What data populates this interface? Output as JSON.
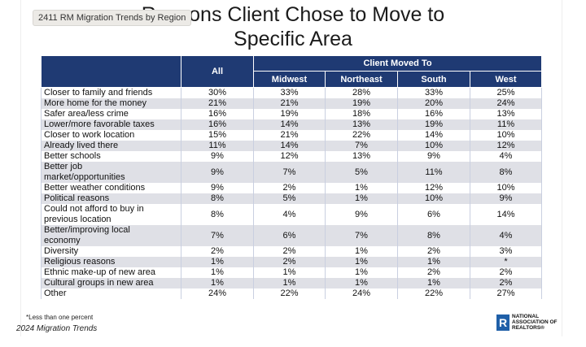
{
  "tooltip": "2411 RM Migration Trends by Region",
  "title": [
    "Reasons Client Chose to Move to",
    "Specific Area"
  ],
  "table": {
    "header": {
      "all": "All",
      "group": "Client Moved To",
      "columns": [
        "Midwest",
        "Northeast",
        "South",
        "West"
      ]
    },
    "rows": [
      [
        "Closer to family and friends",
        "30%",
        "33%",
        "28%",
        "33%",
        "25%"
      ],
      [
        "More home for the money",
        "21%",
        "21%",
        "19%",
        "20%",
        "24%"
      ],
      [
        "Safer area/less crime",
        "16%",
        "19%",
        "18%",
        "16%",
        "13%"
      ],
      [
        "Lower/more favorable taxes",
        "16%",
        "14%",
        "13%",
        "19%",
        "11%"
      ],
      [
        "Closer to work location",
        "15%",
        "21%",
        "22%",
        "14%",
        "10%"
      ],
      [
        "Already lived there",
        "11%",
        "14%",
        "7%",
        "10%",
        "12%"
      ],
      [
        "Better schools",
        "9%",
        "12%",
        "13%",
        "9%",
        "4%"
      ],
      [
        "Better job market/opportunities",
        "9%",
        "7%",
        "5%",
        "11%",
        "8%"
      ],
      [
        "Better weather conditions",
        "9%",
        "2%",
        "1%",
        "12%",
        "10%"
      ],
      [
        "Political reasons",
        "8%",
        "5%",
        "1%",
        "10%",
        "9%"
      ],
      [
        "Could not afford to buy in previous location",
        "8%",
        "4%",
        "9%",
        "6%",
        "14%"
      ],
      [
        "Better/improving local economy",
        "7%",
        "6%",
        "7%",
        "8%",
        "4%"
      ],
      [
        "Diversity",
        "2%",
        "2%",
        "1%",
        "2%",
        "3%"
      ],
      [
        "Religious reasons",
        "1%",
        "2%",
        "1%",
        "1%",
        "*"
      ],
      [
        "Ethnic make-up of new area",
        "1%",
        "1%",
        "1%",
        "2%",
        "2%"
      ],
      [
        "Cultural groups in new area",
        "1%",
        "1%",
        "1%",
        "1%",
        "2%"
      ],
      [
        "Other",
        "24%",
        "22%",
        "24%",
        "22%",
        "27%"
      ]
    ]
  },
  "footnote": "*Less than one percent",
  "footer": "2024 Migration Trends",
  "logo": [
    "NATIONAL",
    "ASSOCIATION OF",
    "REALTORS®"
  ]
}
